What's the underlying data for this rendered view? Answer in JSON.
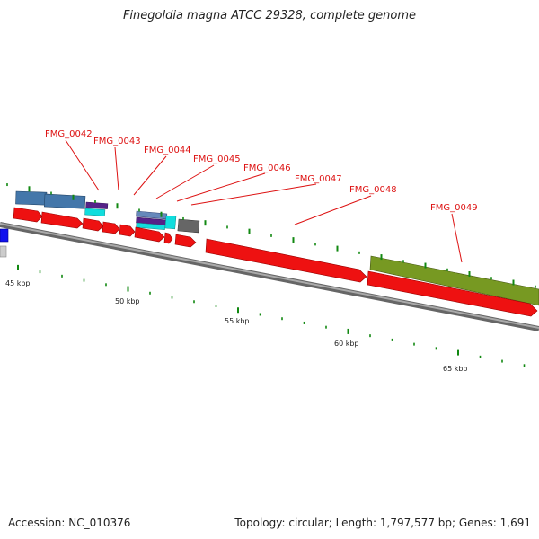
{
  "title": "Finegoldia magna ATCC 29328, complete genome",
  "footer": {
    "accession": "Accession: NC_010376",
    "summary": "Topology: circular; Length: 1,797,577 bp; Genes: 1,691"
  },
  "colors": {
    "cds": "#ee1111",
    "backbone": "#888888",
    "ticks": "#118811",
    "callout": "#dd1111",
    "feature_blue": "#4477aa",
    "feature_cyan": "#11dddd",
    "feature_purple": "#552288",
    "feature_gray": "#666666",
    "feature_olive": "#779922",
    "feature_darkblue": "#1111ee"
  },
  "scale_labels": [
    "45 kbp",
    "50 kbp",
    "55 kbp",
    "60 kbp",
    "65 kbp"
  ],
  "gene_labels": [
    "FMG_0042",
    "FMG_0043",
    "FMG_0044",
    "FMG_0045",
    "FMG_0046",
    "FMG_0047",
    "FMG_0048",
    "FMG_0049"
  ]
}
